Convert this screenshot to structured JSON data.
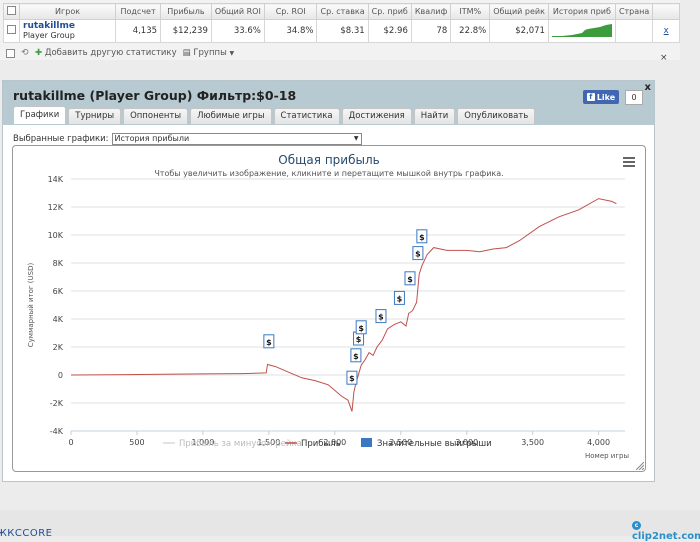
{
  "table": {
    "headers": [
      "Игрок",
      "Подсчет",
      "Прибыль",
      "Общий ROI",
      "Ср. ROI",
      "Ср. ставка",
      "Ср. приб",
      "Квалиф",
      "ITM%",
      "Общий рейк",
      "История приб",
      "Страна"
    ],
    "row": {
      "player": "rutakillme",
      "group": "Player Group",
      "count": "4,135",
      "profit": "$12,239",
      "total_roi": "33.6%",
      "avg_roi": "34.8%",
      "avg_stake": "$8.31",
      "avg_profit": "$2.96",
      "qualif": "78",
      "itm": "22.8%",
      "total_rake": "$2,071",
      "remove": "x"
    }
  },
  "toolbar": {
    "add_stat": "Добавить другую статистику",
    "groups": "Группы"
  },
  "dialog": {
    "title": "rutakillme (Player Group) Фильтр:$0-18",
    "close": "x",
    "fb_like": "Like",
    "fb_count": "0",
    "tabs": [
      "Графики",
      "Турниры",
      "Оппоненты",
      "Любимые игры",
      "Статистика",
      "Достижения",
      "Найти",
      "Опубликовать"
    ],
    "select_label": "Выбранные графики:",
    "select_value": "История прибыли"
  },
  "chart_data": {
    "type": "line",
    "title": "Общая прибыль",
    "subtitle": "Чтобы увеличить изображение, кликните и перетащите мышкой внутрь графика.",
    "ylabel": "Суммарный итог (USD)",
    "xlabel": "Номер игры",
    "xlim": [
      0,
      4200
    ],
    "ylim": [
      -4000,
      14000
    ],
    "x_ticks": [
      "0",
      "500",
      "1,000",
      "1,500",
      "2,000",
      "2,500",
      "3,000",
      "3,500",
      "4,000"
    ],
    "y_ticks": [
      "14K",
      "12K",
      "10K",
      "8K",
      "6K",
      "4K",
      "2K",
      "0",
      "-2K",
      "-4K"
    ],
    "series": [
      {
        "name": "Прибыль за минусом рейка",
        "color": "#d8d8d8",
        "points": []
      },
      {
        "name": "Прибыль",
        "color": "#c0504d",
        "points": [
          [
            0,
            0
          ],
          [
            300,
            20
          ],
          [
            700,
            50
          ],
          [
            1000,
            80
          ],
          [
            1300,
            100
          ],
          [
            1480,
            150
          ],
          [
            1490,
            750
          ],
          [
            1550,
            600
          ],
          [
            1650,
            200
          ],
          [
            1750,
            -200
          ],
          [
            1850,
            -400
          ],
          [
            1950,
            -700
          ],
          [
            2050,
            -1500
          ],
          [
            2100,
            -1800
          ],
          [
            2130,
            -2600
          ],
          [
            2145,
            -1200
          ],
          [
            2160,
            -600
          ],
          [
            2200,
            700
          ],
          [
            2230,
            1100
          ],
          [
            2260,
            1600
          ],
          [
            2290,
            1400
          ],
          [
            2320,
            2000
          ],
          [
            2360,
            2500
          ],
          [
            2400,
            3300
          ],
          [
            2450,
            3600
          ],
          [
            2500,
            3800
          ],
          [
            2540,
            3500
          ],
          [
            2560,
            4400
          ],
          [
            2590,
            4600
          ],
          [
            2620,
            5200
          ],
          [
            2640,
            7200
          ],
          [
            2660,
            7800
          ],
          [
            2700,
            8600
          ],
          [
            2750,
            9100
          ],
          [
            2850,
            8900
          ],
          [
            3000,
            8900
          ],
          [
            3100,
            8800
          ],
          [
            3200,
            9000
          ],
          [
            3300,
            9100
          ],
          [
            3400,
            9600
          ],
          [
            3550,
            10600
          ],
          [
            3700,
            11300
          ],
          [
            3850,
            11800
          ],
          [
            4000,
            12600
          ],
          [
            4100,
            12400
          ],
          [
            4135,
            12239
          ]
        ]
      },
      {
        "name": "Значительные выигрыши",
        "color": "#3b78c3",
        "points": []
      }
    ],
    "flags": [
      {
        "x": 1500,
        "y": 2300,
        "label": "$"
      },
      {
        "x": 2130,
        "y": -300,
        "label": "$"
      },
      {
        "x": 2160,
        "y": 1300,
        "label": "$"
      },
      {
        "x": 2180,
        "y": 2500,
        "label": "$"
      },
      {
        "x": 2200,
        "y": 3300,
        "label": "$"
      },
      {
        "x": 2350,
        "y": 4100,
        "label": "$"
      },
      {
        "x": 2490,
        "y": 5400,
        "label": "$"
      },
      {
        "x": 2570,
        "y": 6800,
        "label": "$"
      },
      {
        "x": 2630,
        "y": 8600,
        "label": "$"
      },
      {
        "x": 2660,
        "y": 9800,
        "label": "$"
      }
    ]
  },
  "footer": {
    "left_text": "ЖКСCORE",
    "brand": "clip2net.com"
  }
}
